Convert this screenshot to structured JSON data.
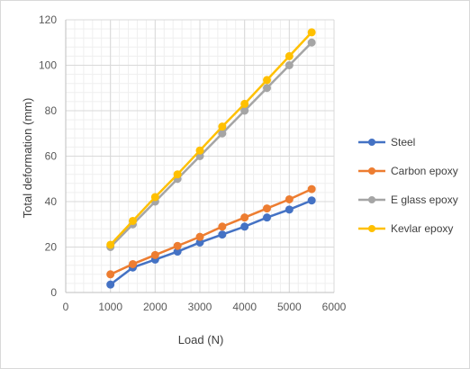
{
  "chart_data": {
    "type": "line",
    "title": "",
    "xlabel": "Load (N)",
    "ylabel": "Total deformation (mm)",
    "xlim": [
      0,
      6000
    ],
    "ylim": [
      0,
      120
    ],
    "x_ticks": [
      0,
      1000,
      2000,
      3000,
      4000,
      5000,
      6000
    ],
    "y_ticks": [
      0,
      20,
      40,
      60,
      80,
      100,
      120
    ],
    "x_tick_labels": [
      "0",
      "1000",
      "2000",
      "3000",
      "4000",
      "5000",
      "6000"
    ],
    "y_tick_labels": [
      "0",
      "20",
      "40",
      "60",
      "80",
      "100",
      "120"
    ],
    "grid": true,
    "minor_grid": true,
    "legend_position": "right",
    "x": [
      1000,
      1500,
      2000,
      2500,
      3000,
      3500,
      4000,
      4500,
      5000,
      5500
    ],
    "series": [
      {
        "name": "Steel",
        "color": "#4472c4",
        "values": [
          3.5,
          11,
          14.5,
          18,
          22,
          25.5,
          29,
          33,
          36.5,
          40.5
        ]
      },
      {
        "name": "Carbon epoxy",
        "color": "#ed7d31",
        "values": [
          8,
          12.5,
          16.5,
          20.5,
          24.5,
          29,
          33,
          37,
          41,
          45.5
        ]
      },
      {
        "name": "E glass epoxy",
        "color": "#a5a5a5",
        "values": [
          20,
          30,
          40,
          50,
          60,
          70,
          80,
          90,
          100,
          110
        ]
      },
      {
        "name": "Kevlar epoxy",
        "color": "#ffc000",
        "values": [
          21,
          31.5,
          42,
          52,
          62.5,
          73,
          83,
          93.5,
          104,
          114.5
        ]
      }
    ]
  }
}
